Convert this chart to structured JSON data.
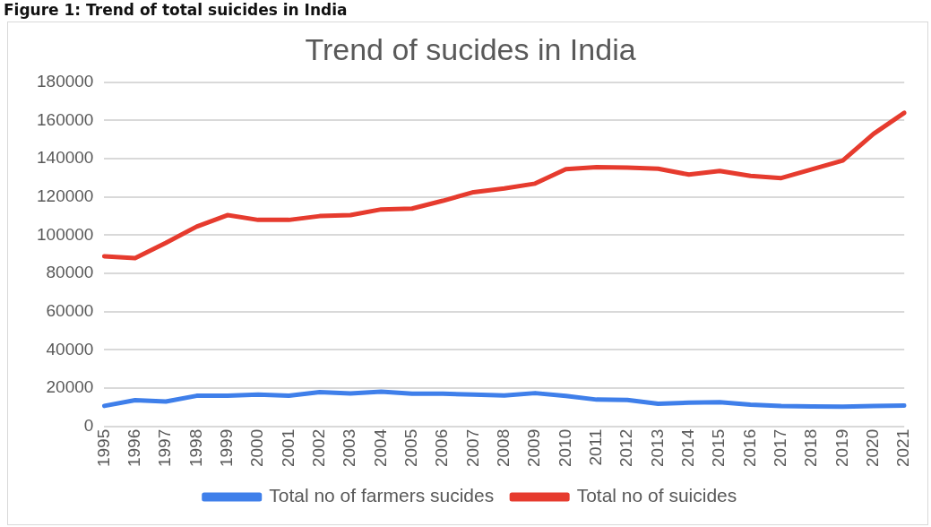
{
  "chart_data": {
    "type": "line",
    "title": "Trend of sucides in India",
    "annotations": [
      "Figure 1: Trend of total suicides in India"
    ],
    "categories": [
      "1995",
      "1996",
      "1997",
      "1998",
      "1999",
      "2000",
      "2001",
      "2002",
      "2003",
      "2004",
      "2005",
      "2006",
      "2007",
      "2008",
      "2009",
      "2010",
      "2011",
      "2012",
      "2013",
      "2014",
      "2015",
      "2016",
      "2017",
      "2018",
      "2019",
      "2020",
      "2021"
    ],
    "series": [
      {
        "name": "Total no of farmers sucides",
        "color": "#3f7fea",
        "values": [
          10700,
          13700,
          13000,
          16000,
          16000,
          16600,
          16000,
          17900,
          17200,
          18200,
          17100,
          17100,
          16600,
          16200,
          17400,
          15900,
          14000,
          13800,
          11800,
          12400,
          12600,
          11400,
          10700,
          10400,
          10300,
          10700,
          10900
        ]
      },
      {
        "name": "Total no of suicides",
        "color": "#e63b2e",
        "values": [
          89000,
          88000,
          96000,
          104500,
          110500,
          108000,
          108000,
          110000,
          110500,
          113500,
          113900,
          118000,
          122500,
          124500,
          127000,
          134600,
          135600,
          135400,
          134800,
          131700,
          133600,
          131000,
          129900,
          134500,
          139100,
          153000,
          164000
        ]
      }
    ],
    "ylim": [
      0,
      180000
    ],
    "yticks": [
      0,
      20000,
      40000,
      60000,
      80000,
      100000,
      120000,
      140000,
      160000,
      180000
    ],
    "grid": "y",
    "legend": "bottom",
    "marker": "none",
    "line_style": "solid"
  }
}
